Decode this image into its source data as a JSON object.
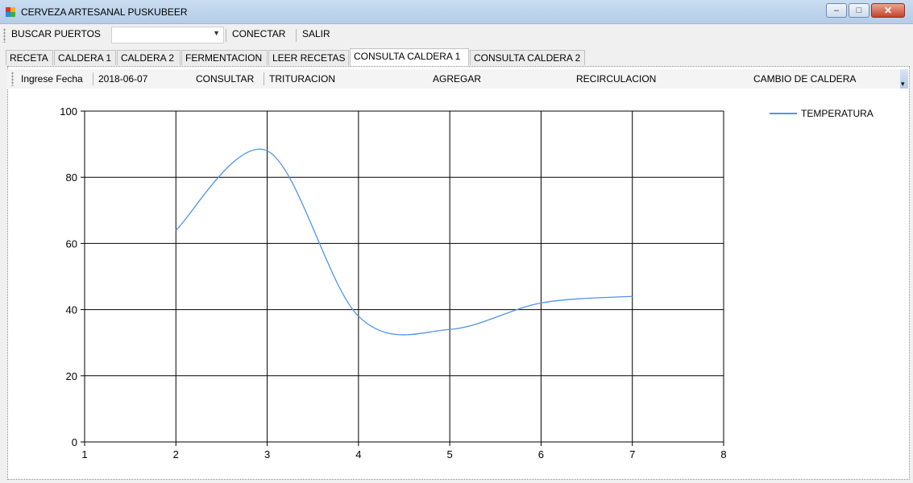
{
  "window": {
    "title": "CERVEZA ARTESANAL PUSKUBEER"
  },
  "menubar": {
    "buscar_label": "BUSCAR PUERTOS",
    "port_value": "",
    "conectar_label": "CONECTAR",
    "salir_label": "SALIR"
  },
  "tabs": [
    {
      "label": "RECETA"
    },
    {
      "label": "CALDERA 1"
    },
    {
      "label": "CALDERA 2"
    },
    {
      "label": "FERMENTACION"
    },
    {
      "label": "LEER RECETAS"
    },
    {
      "label": "CONSULTA CALDERA 1"
    },
    {
      "label": "CONSULTA CALDERA 2"
    }
  ],
  "active_tab": "CONSULTA CALDERA 1",
  "toolstrip": {
    "fecha_label": "Ingrese Fecha",
    "fecha_value": "2018-06-07",
    "consultar_label": "CONSULTAR",
    "trituracion_label": "TRITURACION",
    "agregar_label": "AGREGAR",
    "recirculacion_label": "RECIRCULACION",
    "cambio_label": "CAMBIO DE CALDERA"
  },
  "chart_data": {
    "type": "line",
    "xlim": [
      1,
      8
    ],
    "ylim": [
      0,
      100
    ],
    "x_ticks": [
      1,
      2,
      3,
      4,
      5,
      6,
      7,
      8
    ],
    "y_ticks": [
      0,
      20,
      40,
      60,
      80,
      100
    ],
    "grid": true,
    "legend_position": "top-right",
    "series": [
      {
        "name": "TEMPERATURA",
        "color": "#4f94e6",
        "smooth": true,
        "x": [
          2,
          3,
          4,
          5,
          6,
          7
        ],
        "y": [
          64,
          88,
          38,
          34,
          42,
          44
        ]
      }
    ]
  },
  "colors": {
    "line": "#4f94e6",
    "grid": "#000000",
    "titlebar": "#c9dcf1"
  }
}
